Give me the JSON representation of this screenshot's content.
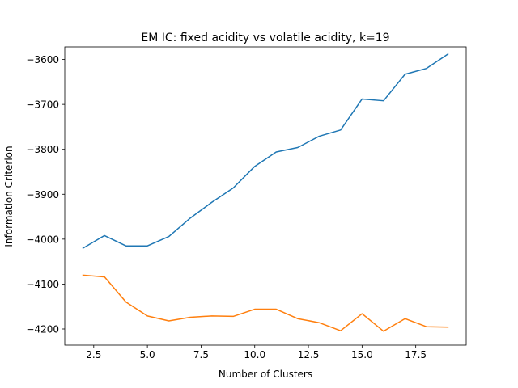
{
  "chart_data": {
    "type": "line",
    "title": "EM IC: fixed acidity vs volatile acidity, k=19",
    "xlabel": "Number of Clusters",
    "ylabel": "Information Criterion",
    "xlim": [
      1.15,
      19.85
    ],
    "ylim": [
      -4236,
      -3572
    ],
    "xticks": [
      2.5,
      5.0,
      7.5,
      10.0,
      12.5,
      15.0,
      17.5
    ],
    "xtick_labels": [
      "2.5",
      "5.0",
      "7.5",
      "10.0",
      "12.5",
      "15.0",
      "17.5"
    ],
    "yticks": [
      -4200,
      -4100,
      -4000,
      -3900,
      -3800,
      -3700,
      -3600
    ],
    "ytick_labels": [
      "−4200",
      "−4100",
      "−4000",
      "−3900",
      "−3800",
      "−3700",
      "−3600"
    ],
    "grid": false,
    "x": [
      2,
      3,
      4,
      5,
      6,
      7,
      8,
      9,
      10,
      11,
      12,
      13,
      14,
      15,
      16,
      17,
      18,
      19
    ],
    "series": [
      {
        "color": "#1f77b4",
        "values": [
          -4020,
          -3992,
          -4015,
          -4015,
          -3994,
          -3953,
          -3918,
          -3886,
          -3838,
          -3806,
          -3796,
          -3771,
          -3757,
          -3688,
          -3692,
          -3633,
          -3620,
          -3588
        ]
      },
      {
        "color": "#ff7f0e",
        "values": [
          -4080,
          -4084,
          -4140,
          -4171,
          -4182,
          -4174,
          -4171,
          -4172,
          -4156,
          -4156,
          -4177,
          -4186,
          -4204,
          -4166,
          -4205,
          -4177,
          -4195,
          -4196
        ]
      }
    ]
  }
}
